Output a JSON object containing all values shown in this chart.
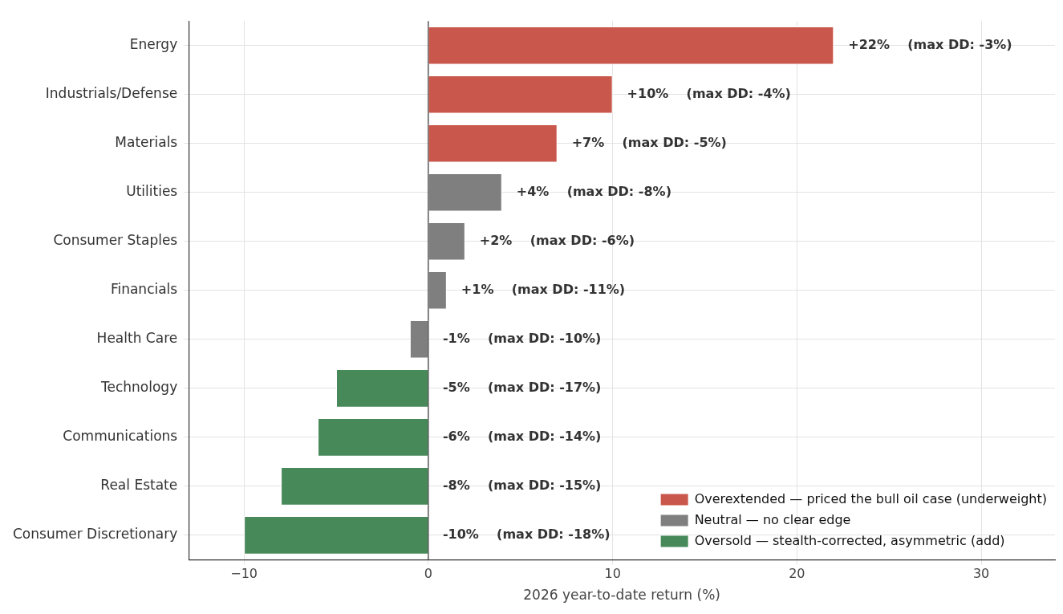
{
  "chart_data": {
    "type": "bar",
    "orientation": "horizontal",
    "stacked": true,
    "categories": [
      "Energy",
      "Industrials/Defense",
      "Materials",
      "Utilities",
      "Consumer Staples",
      "Financials",
      "Health Care",
      "Technology",
      "Communications",
      "Real Estate",
      "Consumer Discretionary"
    ],
    "series": [
      {
        "name": "Overextended — priced the bull oil case (underweight)",
        "color": "#c9574b",
        "values": [
          22,
          10,
          7,
          null,
          null,
          null,
          null,
          null,
          null,
          null,
          null
        ],
        "value_labels": [
          "+22%    (max DD: -3%)",
          "+10%    (max DD: -4%)",
          "+7%    (max DD: -5%)",
          null,
          null,
          null,
          null,
          null,
          null,
          null,
          null
        ]
      },
      {
        "name": "Neutral — no clear edge",
        "color": "#7f7f7f",
        "values": [
          null,
          null,
          null,
          4,
          2,
          1,
          -1,
          null,
          null,
          null,
          null
        ],
        "value_labels": [
          null,
          null,
          null,
          "+4%    (max DD: -8%)",
          "+2%    (max DD: -6%)",
          "+1%    (max DD: -11%)",
          "-1%    (max DD: -10%)",
          null,
          null,
          null,
          null
        ]
      },
      {
        "name": "Oversold — stealth-corrected, asymmetric (add)",
        "color": "#478959",
        "values": [
          null,
          null,
          null,
          null,
          null,
          null,
          null,
          -5,
          -6,
          -8,
          -10
        ],
        "value_labels": [
          null,
          null,
          null,
          null,
          null,
          null,
          null,
          "-5%    (max DD: -17%)",
          "-6%    (max DD: -14%)",
          "-8%    (max DD: -15%)",
          "-10%    (max DD: -18%)"
        ]
      }
    ],
    "xlabel": "2026 year-to-date return (%)",
    "xlim": [
      -13,
      34
    ],
    "xticks": [
      {
        "value": -10,
        "label": "−10"
      },
      0,
      10,
      20,
      30
    ],
    "ref_lines": [
      {
        "axis": "x",
        "value": 0,
        "color": "#333333"
      }
    ],
    "grid": true,
    "legend": "bottom right"
  }
}
